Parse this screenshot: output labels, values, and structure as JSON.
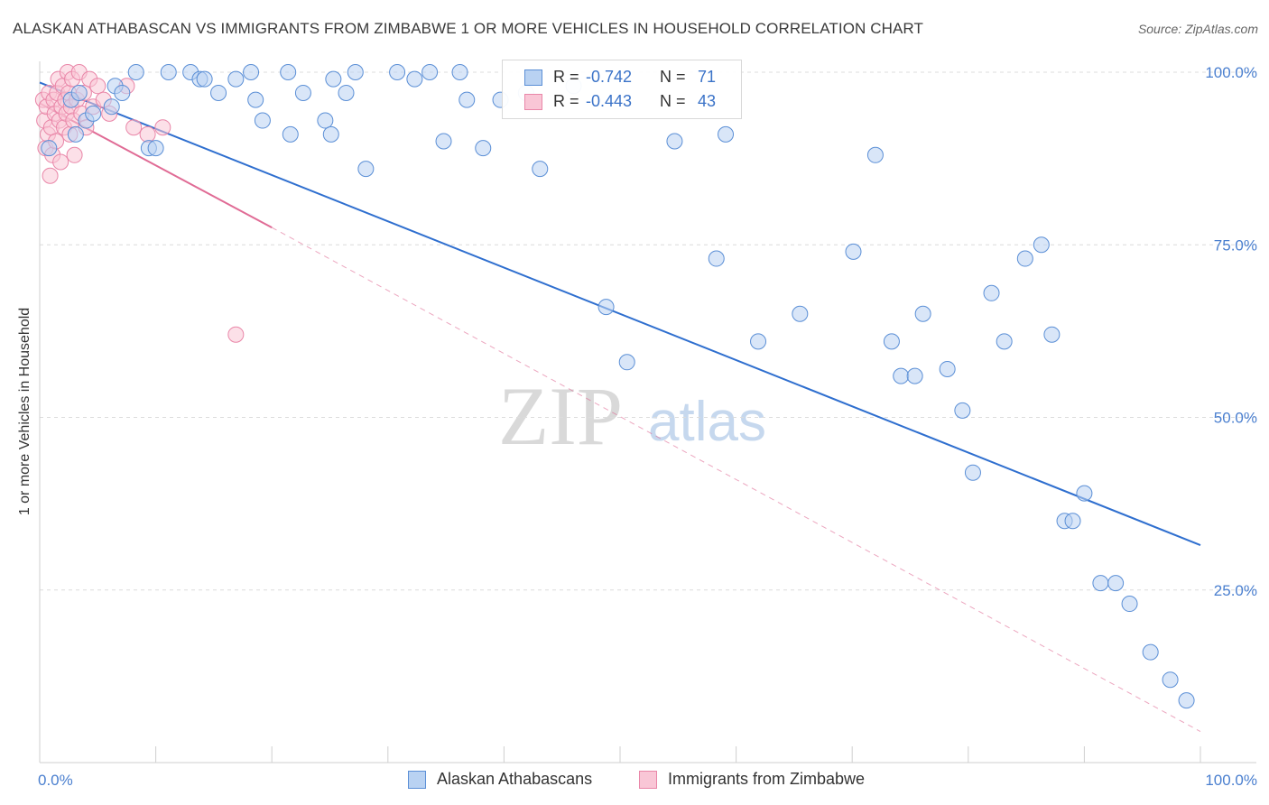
{
  "header": {
    "title": "ALASKAN ATHABASCAN VS IMMIGRANTS FROM ZIMBABWE 1 OR MORE VEHICLES IN HOUSEHOLD CORRELATION CHART",
    "source": "Source: ZipAtlas.com"
  },
  "watermark": {
    "zip": "ZIP",
    "atlas": "atlas"
  },
  "stats": [
    {
      "r_label": "R =",
      "r_value": "-0.742",
      "n_label": "N =",
      "n_value": "71"
    },
    {
      "r_label": "R =",
      "r_value": "-0.443",
      "n_label": "N =",
      "n_value": "43"
    }
  ],
  "legend": {
    "series1": "Alaskan Athabascans",
    "series2": "Immigrants from Zimbabwe"
  },
  "colors": {
    "series1_fill": "#b9d2f2",
    "series1_stroke": "#5b8fd6",
    "series1_line": "#2f6fcf",
    "series2_fill": "#f9c6d6",
    "series2_stroke": "#e986a8",
    "series2_line": "#e06b95",
    "axis_label": "#4a7fcf"
  },
  "chart_data": {
    "type": "scatter",
    "title": "ALASKAN ATHABASCAN VS IMMIGRANTS FROM ZIMBABWE 1 OR MORE VEHICLES IN HOUSEHOLD CORRELATION CHART",
    "ylabel": "1 or more Vehicles in Household",
    "xlabel": "",
    "xlim": [
      0,
      100
    ],
    "ylim": [
      0,
      100
    ],
    "x_tick_labels": [
      "0.0%",
      "100.0%"
    ],
    "y_ticks": [
      25,
      50,
      75,
      100
    ],
    "y_tick_labels": [
      "25.0%",
      "50.0%",
      "75.0%",
      "100.0%"
    ],
    "grid": "horizontal dashed",
    "legend_position": "bottom",
    "series": [
      {
        "name": "Alaskan Athabascans",
        "r": -0.742,
        "n": 71,
        "trend": {
          "x": [
            0,
            100
          ],
          "y": [
            98.5,
            31.5
          ]
        },
        "points": [
          [
            0.8,
            89
          ],
          [
            2.7,
            96
          ],
          [
            3.1,
            91
          ],
          [
            3.4,
            97
          ],
          [
            4.0,
            93
          ],
          [
            4.6,
            94
          ],
          [
            6.2,
            95
          ],
          [
            6.5,
            98
          ],
          [
            7.1,
            97
          ],
          [
            8.3,
            100
          ],
          [
            9.4,
            89
          ],
          [
            10.0,
            89
          ],
          [
            11.1,
            100
          ],
          [
            13.0,
            100
          ],
          [
            13.8,
            99
          ],
          [
            14.2,
            99
          ],
          [
            15.4,
            97
          ],
          [
            16.9,
            99
          ],
          [
            18.2,
            100
          ],
          [
            18.6,
            96
          ],
          [
            19.2,
            93
          ],
          [
            21.4,
            100
          ],
          [
            21.6,
            91
          ],
          [
            22.7,
            97
          ],
          [
            24.6,
            93
          ],
          [
            25.1,
            91
          ],
          [
            25.3,
            99
          ],
          [
            26.4,
            97
          ],
          [
            27.2,
            100
          ],
          [
            28.1,
            86
          ],
          [
            30.8,
            100
          ],
          [
            32.3,
            99
          ],
          [
            33.6,
            100
          ],
          [
            34.8,
            90
          ],
          [
            36.2,
            100
          ],
          [
            36.8,
            96
          ],
          [
            38.2,
            89
          ],
          [
            39.7,
            96
          ],
          [
            41.9,
            97
          ],
          [
            43.1,
            86
          ],
          [
            46.0,
            98
          ],
          [
            48.8,
            66
          ],
          [
            50.6,
            58
          ],
          [
            54.7,
            90
          ],
          [
            58.3,
            73
          ],
          [
            59.1,
            91
          ],
          [
            61.9,
            61
          ],
          [
            65.5,
            65
          ],
          [
            70.1,
            74
          ],
          [
            72.0,
            88
          ],
          [
            73.4,
            61
          ],
          [
            74.2,
            56
          ],
          [
            75.4,
            56
          ],
          [
            76.1,
            65
          ],
          [
            78.2,
            57
          ],
          [
            79.5,
            51
          ],
          [
            80.4,
            42
          ],
          [
            82.0,
            68
          ],
          [
            83.1,
            61
          ],
          [
            84.9,
            73
          ],
          [
            86.3,
            75
          ],
          [
            87.2,
            62
          ],
          [
            88.3,
            35
          ],
          [
            89.0,
            35
          ],
          [
            90.0,
            39
          ],
          [
            91.4,
            26
          ],
          [
            92.7,
            26
          ],
          [
            93.9,
            23
          ],
          [
            95.7,
            16
          ],
          [
            97.4,
            12
          ],
          [
            98.8,
            9
          ]
        ]
      },
      {
        "name": "Immigrants from Zimbabwe",
        "r": -0.443,
        "n": 43,
        "trend": {
          "x": [
            0,
            20
          ],
          "y": [
            95.5,
            77.5
          ]
        },
        "trend_extended": {
          "x": [
            20,
            100
          ],
          "y": [
            77.5,
            4.5
          ]
        },
        "points": [
          [
            0.3,
            96
          ],
          [
            0.4,
            93
          ],
          [
            0.5,
            89
          ],
          [
            0.6,
            95
          ],
          [
            0.7,
            91
          ],
          [
            0.8,
            97
          ],
          [
            0.9,
            85
          ],
          [
            1.0,
            92
          ],
          [
            1.1,
            88
          ],
          [
            1.2,
            96
          ],
          [
            1.3,
            94
          ],
          [
            1.4,
            90
          ],
          [
            1.5,
            97
          ],
          [
            1.6,
            99
          ],
          [
            1.7,
            93
          ],
          [
            1.8,
            87
          ],
          [
            1.9,
            95
          ],
          [
            2.0,
            98
          ],
          [
            2.1,
            92
          ],
          [
            2.2,
            96
          ],
          [
            2.3,
            94
          ],
          [
            2.4,
            100
          ],
          [
            2.5,
            97
          ],
          [
            2.6,
            91
          ],
          [
            2.7,
            95
          ],
          [
            2.8,
            99
          ],
          [
            2.9,
            93
          ],
          [
            3.0,
            88
          ],
          [
            3.2,
            96
          ],
          [
            3.4,
            100
          ],
          [
            3.6,
            94
          ],
          [
            3.8,
            97
          ],
          [
            4.0,
            92
          ],
          [
            4.3,
            99
          ],
          [
            4.6,
            95
          ],
          [
            5.0,
            98
          ],
          [
            5.5,
            96
          ],
          [
            6.0,
            94
          ],
          [
            7.5,
            98
          ],
          [
            8.1,
            92
          ],
          [
            9.3,
            91
          ],
          [
            10.6,
            92
          ],
          [
            16.9,
            62
          ]
        ]
      }
    ]
  }
}
